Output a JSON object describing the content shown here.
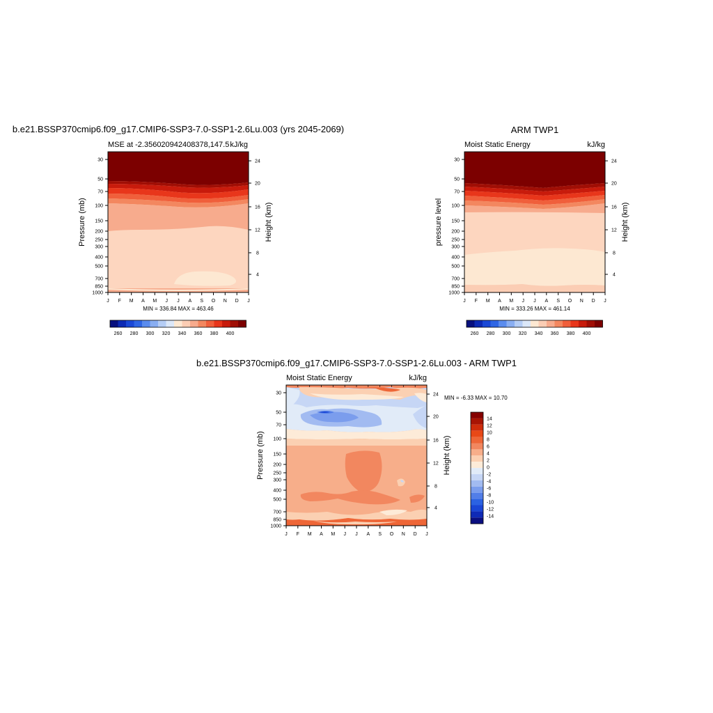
{
  "colors": {
    "mse_levels": [
      "#08107e",
      "#0d2ab4",
      "#1a48d6",
      "#2f66e4",
      "#5a8cee",
      "#89aef2",
      "#b5cdf5",
      "#dbe7f8",
      "#fde8d2",
      "#fbcdb4",
      "#f7ab8d",
      "#f3875f",
      "#f05f3b",
      "#e8361b",
      "#c81b0c",
      "#a00e05",
      "#7c0000"
    ],
    "diff_levels": [
      "#0a0f80",
      "#0f2ab6",
      "#1a46d5",
      "#2b62e2",
      "#527ee8",
      "#7b9ded",
      "#a2bbf1",
      "#c6d6f5",
      "#e1ebf8",
      "#fdebd8",
      "#fbd0b2",
      "#f7ae8a",
      "#f2875f",
      "#ee6637",
      "#e84817",
      "#cf2c0b",
      "#a81404",
      "#850000"
    ]
  },
  "panel_a": {
    "title": "b.e21.BSSP370cmip6.f09_g17.CMIP6-SSP3-7.0-SSP1-2.6Lu.003 (yrs 2045-2069)",
    "left_label": "MSE at -2.356020942408378,147.5",
    "right_label": "kJ/kg",
    "ylabel": "Pressure (mb)",
    "ylabel2": "Height (km)",
    "minmax": "MIN = 336.84 MAX = 463.46"
  },
  "panel_b": {
    "title": "ARM TWP1",
    "left_label": "Moist Static Energy",
    "right_label": "kJ/kg",
    "ylabel": "pressure level",
    "ylabel2": "Height (km)",
    "minmax": "MIN = 333.26 MAX = 461.14"
  },
  "panel_c": {
    "title": "b.e21.BSSP370cmip6.f09_g17.CMIP6-SSP3-7.0-SSP1-2.6Lu.003 - ARM TWP1",
    "left_label": "Moist Static Energy",
    "right_label": "kJ/kg",
    "ylabel": "Pressure (mb)",
    "ylabel2": "Height (km)",
    "minmax": "MIN =  -6.33 MAX =  10.70"
  },
  "chart_data": [
    {
      "type": "heatmap",
      "title": "b.e21.BSSP370cmip6.f09_g17.CMIP6-SSP3-7.0-SSP1-2.6Lu.003 (yrs 2045-2069)",
      "variable": "MSE at -2.356020942408378,147.5",
      "units": "kJ/kg",
      "x_ticks": [
        "J",
        "F",
        "M",
        "A",
        "M",
        "J",
        "J",
        "A",
        "S",
        "O",
        "N",
        "D",
        "J"
      ],
      "y_ticks": [
        "30",
        "50",
        "70",
        "100",
        "150",
        "200",
        "250",
        "300",
        "400",
        "500",
        "700",
        "850",
        "1000"
      ],
      "y_log_scale": true,
      "ylabel": "Pressure (mb)",
      "ylabel_right": "Height (km)",
      "y2_ticks": [
        "24",
        "20",
        "16",
        "12",
        "8",
        "4"
      ],
      "colorbar_labels": [
        "260",
        "280",
        "300",
        "320",
        "340",
        "360",
        "380",
        "400"
      ],
      "min": 336.84,
      "max": 463.46
    },
    {
      "type": "heatmap",
      "title": "ARM TWP1",
      "variable": "Moist Static Energy",
      "units": "kJ/kg",
      "x_ticks": [
        "J",
        "F",
        "M",
        "A",
        "M",
        "J",
        "J",
        "A",
        "S",
        "O",
        "N",
        "D",
        "J"
      ],
      "y_ticks": [
        "30",
        "50",
        "70",
        "100",
        "150",
        "200",
        "250",
        "300",
        "400",
        "500",
        "700",
        "850",
        "1000"
      ],
      "y_log_scale": true,
      "ylabel": "pressure level",
      "ylabel_right": "Height (km)",
      "y2_ticks": [
        "24",
        "20",
        "16",
        "12",
        "8",
        "4"
      ],
      "colorbar_labels": [
        "260",
        "280",
        "300",
        "320",
        "340",
        "360",
        "380",
        "400"
      ],
      "min": 333.26,
      "max": 461.14
    },
    {
      "type": "heatmap",
      "title": "b.e21.BSSP370cmip6.f09_g17.CMIP6-SSP3-7.0-SSP1-2.6Lu.003 - ARM TWP1",
      "variable": "Moist Static Energy",
      "units": "kJ/kg",
      "x_ticks": [
        "J",
        "F",
        "M",
        "A",
        "M",
        "J",
        "J",
        "A",
        "S",
        "O",
        "N",
        "D",
        "J"
      ],
      "y_ticks": [
        "30",
        "50",
        "70",
        "100",
        "150",
        "200",
        "250",
        "300",
        "400",
        "500",
        "700",
        "850",
        "1000"
      ],
      "y_log_scale": true,
      "ylabel": "Pressure (mb)",
      "ylabel_right": "Height (km)",
      "y2_ticks": [
        "24",
        "20",
        "16",
        "12",
        "8",
        "4"
      ],
      "colorbar_labels": [
        "14",
        "12",
        "10",
        "8",
        "6",
        "4",
        "2",
        "0",
        "-2",
        "-4",
        "-6",
        "-8",
        "-10",
        "-12",
        "-14"
      ],
      "min": -6.33,
      "max": 10.7
    }
  ]
}
